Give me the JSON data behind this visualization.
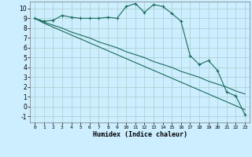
{
  "title": "",
  "xlabel": "Humidex (Indice chaleur)",
  "background_color": "#cceeff",
  "grid_color": "#aacccc",
  "line_color": "#1a6b5a",
  "xlim": [
    -0.5,
    23.5
  ],
  "ylim": [
    -1.6,
    10.7
  ],
  "xticks": [
    0,
    1,
    2,
    3,
    4,
    5,
    6,
    7,
    8,
    9,
    10,
    11,
    12,
    13,
    14,
    15,
    16,
    17,
    18,
    19,
    20,
    21,
    22,
    23
  ],
  "yticks": [
    -1,
    0,
    1,
    2,
    3,
    4,
    5,
    6,
    7,
    8,
    9,
    10
  ],
  "line1_x": [
    0,
    1,
    2,
    3,
    4,
    5,
    6,
    7,
    8,
    9,
    10,
    11,
    12,
    13,
    14,
    15,
    16,
    17,
    18,
    19,
    20,
    21,
    22,
    23
  ],
  "line1_y": [
    9.0,
    8.7,
    8.8,
    9.3,
    9.1,
    9.0,
    9.0,
    9.0,
    9.1,
    9.0,
    10.2,
    10.5,
    9.6,
    10.4,
    10.2,
    9.5,
    8.7,
    5.2,
    4.3,
    4.7,
    3.7,
    1.5,
    1.1,
    -0.8
  ],
  "line2_x": [
    0,
    1,
    2,
    3,
    4,
    5,
    6,
    7,
    8,
    9,
    10,
    11,
    12,
    13,
    14,
    15,
    16,
    17,
    18,
    19,
    20,
    21,
    22,
    23
  ],
  "line2_y": [
    9.0,
    8.6,
    8.3,
    8.0,
    7.6,
    7.3,
    7.0,
    6.6,
    6.3,
    6.0,
    5.6,
    5.3,
    5.0,
    4.6,
    4.3,
    4.0,
    3.6,
    3.3,
    3.0,
    2.6,
    2.3,
    2.0,
    1.6,
    1.3
  ],
  "line3_x": [
    0,
    1,
    2,
    3,
    4,
    5,
    6,
    7,
    8,
    9,
    10,
    11,
    12,
    13,
    14,
    15,
    16,
    17,
    18,
    19,
    20,
    21,
    22,
    23
  ],
  "line3_y": [
    9.0,
    8.5,
    8.1,
    7.7,
    7.3,
    6.9,
    6.5,
    6.1,
    5.7,
    5.3,
    4.9,
    4.5,
    4.1,
    3.7,
    3.3,
    2.9,
    2.5,
    2.1,
    1.7,
    1.3,
    0.9,
    0.5,
    0.1,
    -0.3
  ]
}
